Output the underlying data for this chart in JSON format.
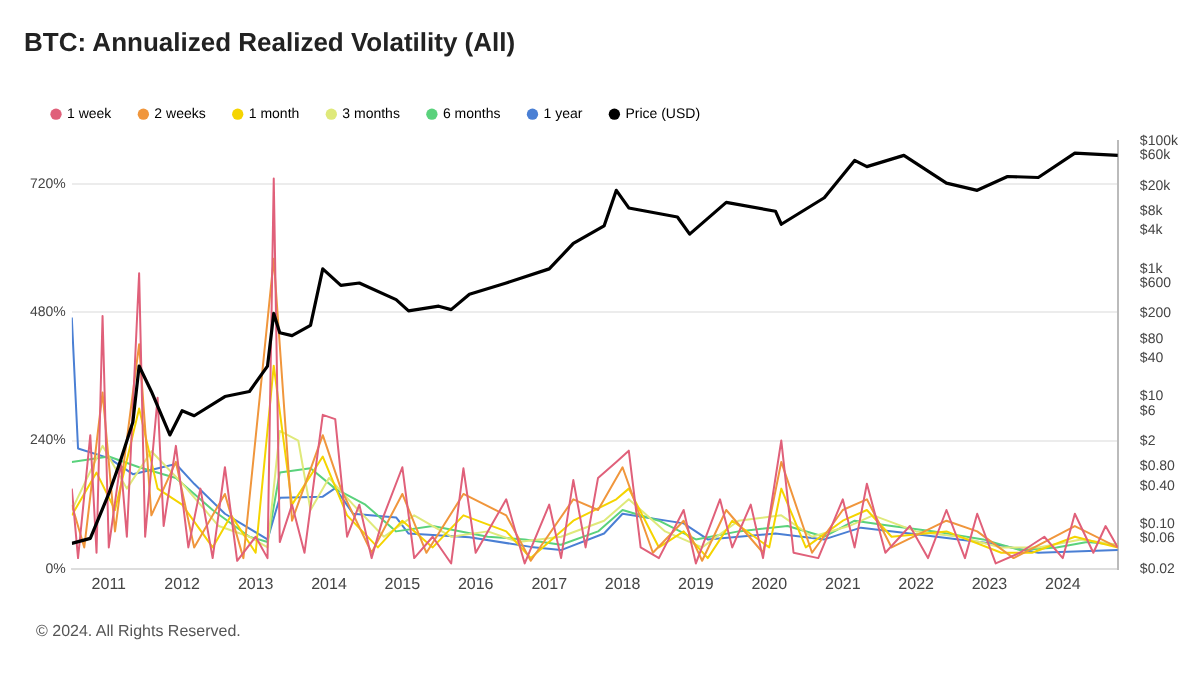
{
  "chart_data": {
    "type": "line",
    "title": "BTC: Annualized Realized Volatility (All)",
    "legend": "top left",
    "grid": "y",
    "log": "y2",
    "marker": "none",
    "line_style": "solid",
    "xlim": [
      "2010-07",
      "2024-10"
    ],
    "xticks": [
      "2011",
      "2012",
      "2013",
      "2014",
      "2015",
      "2016",
      "2017",
      "2018",
      "2019",
      "2020",
      "2021",
      "2022",
      "2023",
      "2024"
    ],
    "ylim": [
      0,
      800
    ],
    "yticks": [
      {
        "value": 0,
        "label": "0%"
      },
      {
        "value": 240,
        "label": "240%"
      },
      {
        "value": 480,
        "label": "480%"
      },
      {
        "value": 720,
        "label": "720%"
      }
    ],
    "y2lim": [
      0.02,
      100000
    ],
    "y2ticks": [
      {
        "value": 0.02,
        "label": "$0.02"
      },
      {
        "value": 0.06,
        "label": "$0.06"
      },
      {
        "value": 0.1,
        "label": "$0.10"
      },
      {
        "value": 0.4,
        "label": "$0.40"
      },
      {
        "value": 0.8,
        "label": "$0.80"
      },
      {
        "value": 2,
        "label": "$2"
      },
      {
        "value": 6,
        "label": "$6"
      },
      {
        "value": 10,
        "label": "$10"
      },
      {
        "value": 40,
        "label": "$40"
      },
      {
        "value": 80,
        "label": "$80"
      },
      {
        "value": 200,
        "label": "$200"
      },
      {
        "value": 600,
        "label": "$600"
      },
      {
        "value": 1000,
        "label": "$1k"
      },
      {
        "value": 4000,
        "label": "$4k"
      },
      {
        "value": 8000,
        "label": "$8k"
      },
      {
        "value": 20000,
        "label": "$20k"
      },
      {
        "value": 60000,
        "label": "$60k"
      },
      {
        "value": 100000,
        "label": "$100k"
      }
    ],
    "annotations": [
      "© 2024. All Rights Reserved."
    ],
    "series": [
      {
        "name": "1 week",
        "color": "#e0607a",
        "x": [
          "2010-07",
          "2010-08",
          "2010-10",
          "2010-11",
          "2010-12",
          "2011-01",
          "2011-03",
          "2011-04",
          "2011-06",
          "2011-07",
          "2011-09",
          "2011-10",
          "2011-12",
          "2012-02",
          "2012-04",
          "2012-06",
          "2012-08",
          "2012-10",
          "2013-01",
          "2013-03",
          "2013-04",
          "2013-05",
          "2013-07",
          "2013-09",
          "2013-12",
          "2014-02",
          "2014-04",
          "2014-06",
          "2014-08",
          "2014-10",
          "2015-01",
          "2015-03",
          "2015-06",
          "2015-09",
          "2015-11",
          "2016-01",
          "2016-06",
          "2016-09",
          "2017-01",
          "2017-03",
          "2017-05",
          "2017-07",
          "2017-09",
          "2017-12",
          "2018-02",
          "2018-04",
          "2018-07",
          "2018-11",
          "2019-01",
          "2019-05",
          "2019-07",
          "2019-10",
          "2019-12",
          "2020-03",
          "2020-05",
          "2020-09",
          "2021-01",
          "2021-03",
          "2021-05",
          "2021-08",
          "2021-12",
          "2022-03",
          "2022-06",
          "2022-09",
          "2022-11",
          "2023-02",
          "2023-06",
          "2023-10",
          "2024-01",
          "2024-03",
          "2024-06",
          "2024-08",
          "2024-10"
        ],
        "values": [
          150,
          20,
          250,
          30,
          473,
          40,
          200,
          60,
          553,
          60,
          320,
          80,
          230,
          40,
          150,
          20,
          190,
          15,
          60,
          20,
          730,
          50,
          120,
          30,
          288,
          280,
          60,
          120,
          20,
          100,
          190,
          20,
          60,
          10,
          188,
          30,
          130,
          10,
          120,
          20,
          166,
          40,
          170,
          200,
          221,
          40,
          20,
          110,
          10,
          130,
          40,
          120,
          20,
          240,
          30,
          20,
          130,
          40,
          159,
          30,
          80,
          20,
          110,
          20,
          103,
          10,
          30,
          60,
          20,
          103,
          30,
          80,
          40
        ]
      },
      {
        "name": "2 weeks",
        "color": "#f0963c",
        "x": [
          "2010-07",
          "2010-09",
          "2010-12",
          "2011-02",
          "2011-06",
          "2011-08",
          "2011-12",
          "2012-03",
          "2012-08",
          "2012-11",
          "2013-04",
          "2013-07",
          "2013-12",
          "2014-03",
          "2014-08",
          "2015-01",
          "2015-05",
          "2015-11",
          "2016-06",
          "2016-10",
          "2017-05",
          "2017-09",
          "2018-01",
          "2018-06",
          "2018-11",
          "2019-02",
          "2019-06",
          "2019-12",
          "2020-03",
          "2020-08",
          "2021-01",
          "2021-05",
          "2021-09",
          "2022-06",
          "2022-11",
          "2023-05",
          "2023-10",
          "2024-03",
          "2024-10"
        ],
        "values": [
          120,
          40,
          330,
          70,
          420,
          100,
          200,
          40,
          140,
          20,
          580,
          90,
          250,
          150,
          30,
          140,
          30,
          140,
          100,
          15,
          130,
          110,
          190,
          30,
          90,
          15,
          110,
          30,
          200,
          30,
          110,
          130,
          40,
          90,
          70,
          20,
          50,
          80,
          40
        ]
      },
      {
        "name": "1 month",
        "color": "#f5d400",
        "x": [
          "2010-07",
          "2010-11",
          "2011-02",
          "2011-06",
          "2011-09",
          "2012-01",
          "2012-06",
          "2012-09",
          "2013-01",
          "2013-04",
          "2013-07",
          "2013-12",
          "2014-04",
          "2014-09",
          "2015-01",
          "2015-06",
          "2015-11",
          "2016-06",
          "2016-10",
          "2017-05",
          "2017-12",
          "2018-02",
          "2018-07",
          "2018-11",
          "2019-03",
          "2019-07",
          "2020-01",
          "2020-03",
          "2020-07",
          "2021-01",
          "2021-05",
          "2021-09",
          "2022-06",
          "2023-03",
          "2023-08",
          "2024-03",
          "2024-10"
        ],
        "values": [
          100,
          180,
          110,
          300,
          150,
          120,
          40,
          100,
          30,
          380,
          120,
          210,
          100,
          40,
          90,
          40,
          100,
          70,
          20,
          90,
          130,
          150,
          40,
          70,
          20,
          90,
          40,
          150,
          40,
          90,
          110,
          60,
          70,
          30,
          30,
          60,
          40
        ]
      },
      {
        "name": "3 months",
        "color": "#dfe97a",
        "x": [
          "2010-07",
          "2010-12",
          "2011-04",
          "2011-08",
          "2012-01",
          "2012-07",
          "2012-12",
          "2013-03",
          "2013-05",
          "2013-08",
          "2013-10",
          "2014-01",
          "2014-05",
          "2014-10",
          "2015-03",
          "2015-09",
          "2016-03",
          "2016-08",
          "2017-03",
          "2017-10",
          "2018-02",
          "2018-08",
          "2019-02",
          "2019-08",
          "2020-03",
          "2020-08",
          "2021-02",
          "2021-06",
          "2022-01",
          "2022-08",
          "2023-03",
          "2023-09",
          "2024-04",
          "2024-10"
        ],
        "values": [
          110,
          230,
          150,
          220,
          160,
          80,
          60,
          40,
          258,
          240,
          110,
          170,
          120,
          60,
          100,
          60,
          70,
          50,
          60,
          90,
          130,
          70,
          40,
          90,
          100,
          60,
          80,
          100,
          70,
          60,
          40,
          40,
          55,
          45
        ]
      },
      {
        "name": "6 months",
        "color": "#5ad27c",
        "x": [
          "2010-07",
          "2011-01",
          "2011-06",
          "2011-12",
          "2012-06",
          "2012-12",
          "2013-03",
          "2013-05",
          "2013-10",
          "2014-02",
          "2014-07",
          "2014-12",
          "2015-06",
          "2016-03",
          "2016-09",
          "2017-03",
          "2017-09",
          "2018-01",
          "2018-07",
          "2019-01",
          "2019-08",
          "2020-04",
          "2020-10",
          "2021-03",
          "2021-09",
          "2022-04",
          "2022-12",
          "2023-06",
          "2023-12",
          "2024-05",
          "2024-10"
        ],
        "values": [
          200,
          210,
          190,
          170,
          110,
          60,
          50,
          180,
          188,
          150,
          120,
          70,
          80,
          60,
          55,
          45,
          70,
          110,
          90,
          55,
          70,
          80,
          60,
          90,
          80,
          70,
          55,
          35,
          40,
          50,
          45
        ]
      },
      {
        "name": "1 year",
        "color": "#4a7fd4",
        "x": [
          "2010-07",
          "2010-08",
          "2011-01",
          "2011-05",
          "2011-12",
          "2012-03",
          "2012-08",
          "2013-03",
          "2013-05",
          "2013-12",
          "2014-02",
          "2014-05",
          "2014-12",
          "2015-02",
          "2015-12",
          "2016-10",
          "2017-03",
          "2017-10",
          "2018-01",
          "2018-11",
          "2019-03",
          "2020-02",
          "2020-10",
          "2021-04",
          "2021-12",
          "2023-01",
          "2023-09",
          "2024-10"
        ],
        "values": [
          470,
          225,
          207,
          177,
          196,
          159,
          103,
          55,
          133,
          135,
          151,
          103,
          96,
          66,
          59,
          41,
          35,
          66,
          103,
          85,
          55,
          66,
          55,
          77,
          66,
          48,
          30,
          35
        ]
      },
      {
        "name": "Price (USD)",
        "color": "#000000",
        "axis": "y2",
        "x": [
          "2010-07",
          "2010-10",
          "2011-01",
          "2011-03",
          "2011-05",
          "2011-06",
          "2011-08",
          "2011-11",
          "2012-01",
          "2012-03",
          "2012-08",
          "2012-12",
          "2013-03",
          "2013-04",
          "2013-05",
          "2013-07",
          "2013-10",
          "2013-12",
          "2014-03",
          "2014-06",
          "2014-12",
          "2015-02",
          "2015-07",
          "2015-09",
          "2015-12",
          "2016-06",
          "2017-01",
          "2017-05",
          "2017-10",
          "2017-12",
          "2018-02",
          "2018-10",
          "2018-12",
          "2019-06",
          "2020-02",
          "2020-03",
          "2020-10",
          "2021-03",
          "2021-05",
          "2021-11",
          "2022-06",
          "2022-11",
          "2023-04",
          "2023-09",
          "2024-03",
          "2024-10"
        ],
        "values": [
          0.05,
          0.06,
          0.3,
          1,
          4,
          30,
          12,
          2.5,
          6,
          5,
          10,
          12,
          30,
          200,
          100,
          90,
          130,
          1000,
          550,
          600,
          330,
          220,
          260,
          230,
          400,
          600,
          1000,
          2500,
          4700,
          17000,
          9000,
          6500,
          3500,
          11000,
          8000,
          5000,
          13000,
          50000,
          40000,
          60000,
          22000,
          17000,
          28000,
          27000,
          65000,
          60000
        ]
      }
    ]
  }
}
